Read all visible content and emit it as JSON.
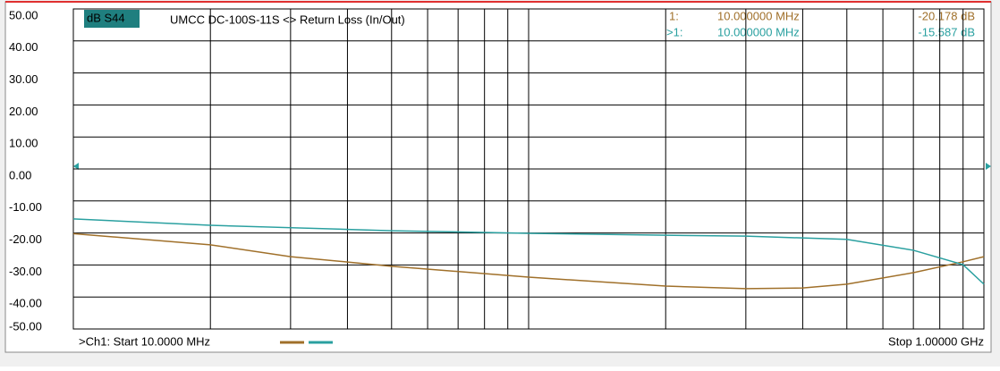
{
  "chart_data": {
    "type": "line",
    "title": "dB S44",
    "subtitle": "UMCC  DC-100S-11S <> Return Loss (In/Out)",
    "start_label": ">Ch1: Start  10.0000 MHz",
    "stop_label": "Stop  1.00000 GHz",
    "markers": [
      {
        "id": "1:",
        "freq": "10.000000 MHz",
        "value": "-20.178 dB"
      },
      {
        "id": ">1:",
        "freq": "10.000000 MHz",
        "value": "-15.587 dB"
      }
    ],
    "log_x": true,
    "xlim": [
      10,
      1000
    ],
    "xticks": [
      10,
      20,
      30,
      40,
      50,
      60,
      70,
      80,
      90,
      100,
      200,
      300,
      400,
      500,
      600,
      700,
      800,
      900,
      1000
    ],
    "ylim": [
      -50,
      50
    ],
    "yticks": [
      {
        "value": 50,
        "label": "50.00"
      },
      {
        "value": 40,
        "label": "40.00"
      },
      {
        "value": 30,
        "label": "30.00"
      },
      {
        "value": 20,
        "label": "20.00"
      },
      {
        "value": 10,
        "label": "10.00"
      },
      {
        "value": 0,
        "label": "0.00"
      },
      {
        "value": -10,
        "label": "-10.00"
      },
      {
        "value": -20,
        "label": "-20.00"
      },
      {
        "value": -30,
        "label": "-30.00"
      },
      {
        "value": -40,
        "label": "-40.00"
      },
      {
        "value": -50,
        "label": "-50.00"
      }
    ],
    "grid": true,
    "series": [
      {
        "color": "#a0702a",
        "x": [
          10,
          20,
          30,
          50,
          100,
          200,
          300,
          400,
          500,
          700,
          900,
          1000
        ],
        "values": [
          -20.2,
          -23.7,
          -27.4,
          -30.4,
          -33.8,
          -36.6,
          -37.4,
          -37.2,
          -36,
          -32.4,
          -29,
          -27.4
        ]
      },
      {
        "color": "#2aa0a0",
        "x": [
          10,
          20,
          50,
          100,
          200,
          300,
          500,
          700,
          900,
          1000
        ],
        "values": [
          -15.6,
          -17.6,
          -19.3,
          -20.1,
          -20.7,
          -21,
          -22,
          -25.4,
          -29.9,
          -36
        ]
      }
    ]
  }
}
